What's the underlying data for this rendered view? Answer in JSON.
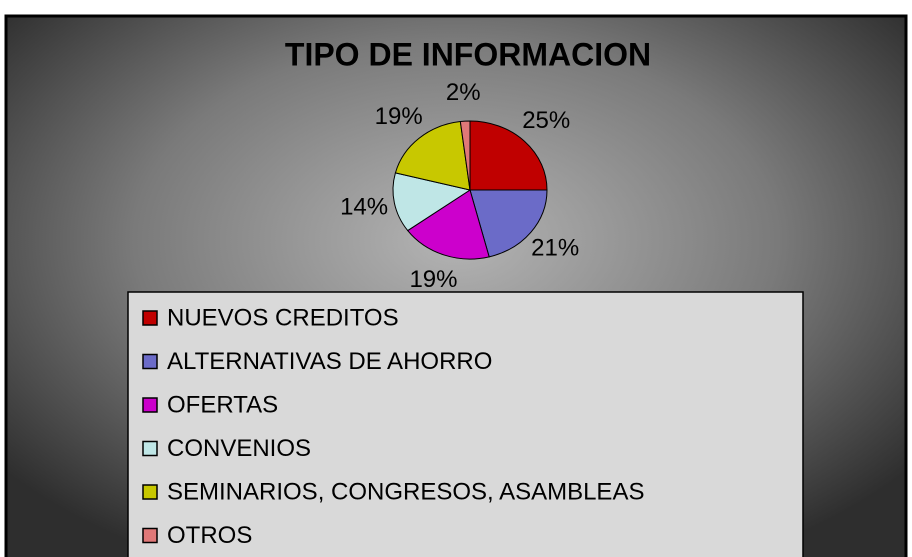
{
  "chart_data": {
    "type": "pie",
    "title": "TIPO DE INFORMACION",
    "categories": [
      "NUEVOS CREDITOS",
      "ALTERNATIVAS DE AHORRO",
      "OFERTAS",
      "CONVENIOS",
      "SEMINARIOS, CONGRESOS, ASAMBLEAS",
      "OTROS"
    ],
    "values": [
      25,
      21,
      19,
      14,
      19,
      2
    ],
    "value_labels": [
      "25%",
      "21%",
      "19%",
      "14%",
      "19%",
      "2%"
    ],
    "colors": [
      "#c00000",
      "#6b6bc8",
      "#cc00cc",
      "#bfe6e6",
      "#c8c800",
      "#e07878"
    ],
    "legend": "bottom"
  }
}
